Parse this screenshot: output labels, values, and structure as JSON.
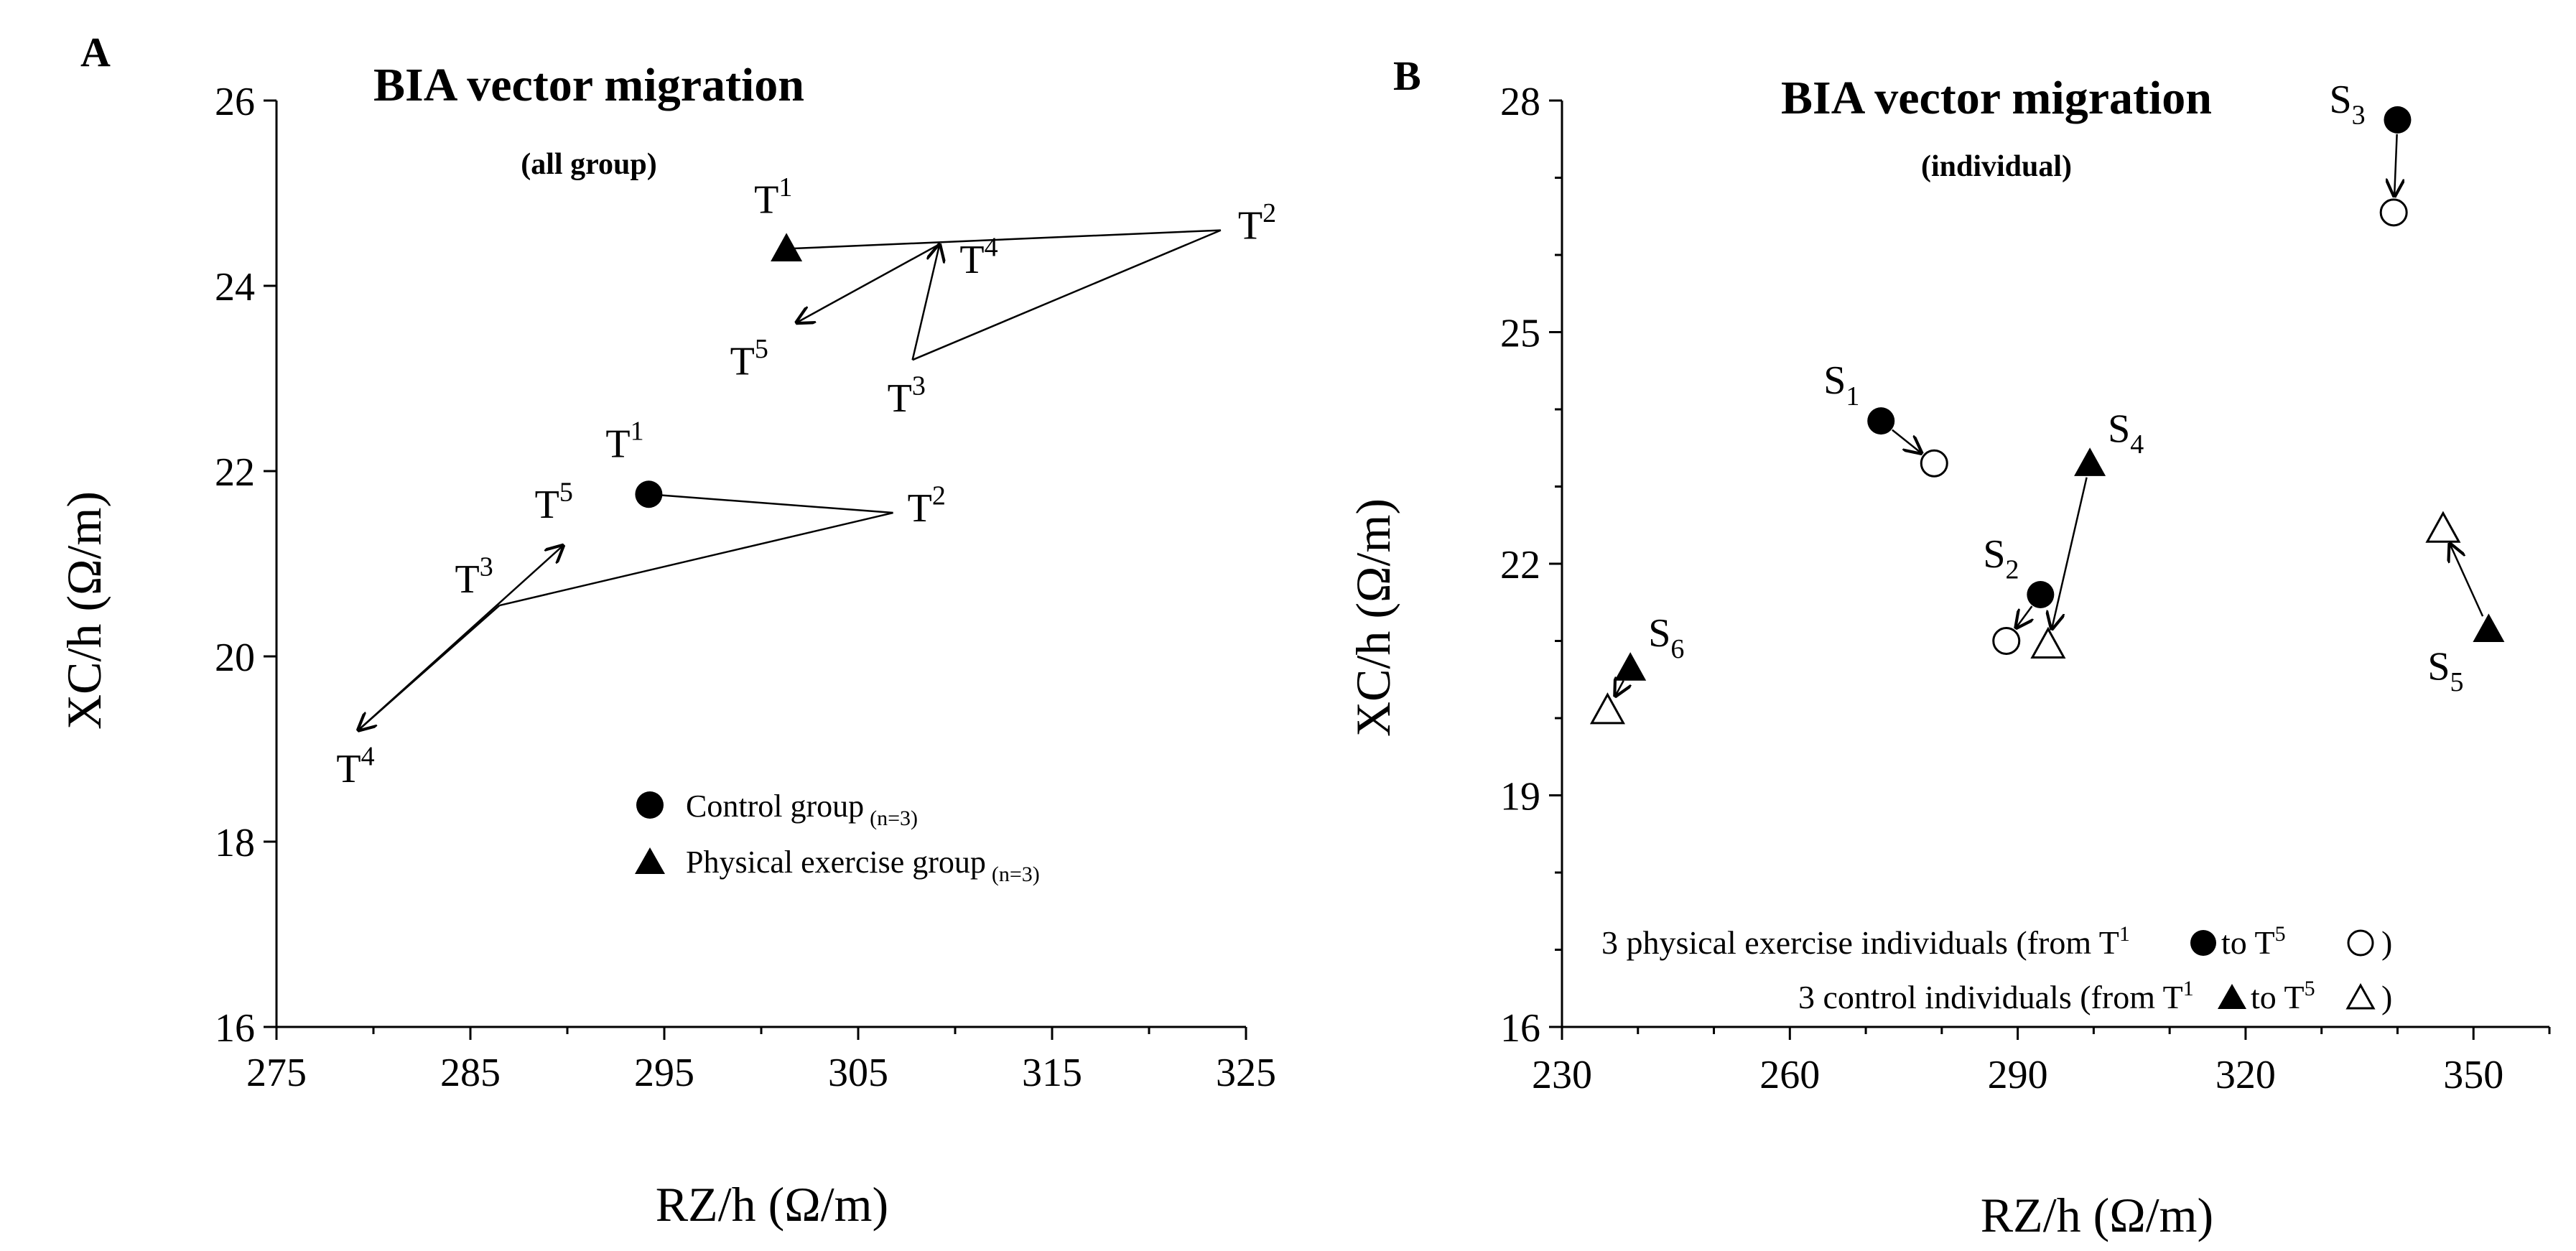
{
  "chart_data": [
    {
      "panel_label": "A",
      "type": "line",
      "title": "BIA vector migration",
      "subtitle": "(all group)",
      "xlabel": "RZ/h (Ω/m)",
      "ylabel": "XC/h (Ω/m)",
      "xlim": [
        275,
        325
      ],
      "ylim": [
        16,
        26
      ],
      "xticks": [
        "275",
        "285",
        "295",
        "305",
        "315",
        "325"
      ],
      "yticks": [
        "16",
        "18",
        "20",
        "22",
        "24",
        "26"
      ],
      "legend": [
        {
          "label": "Control group",
          "sub": "(n=3)",
          "marker": "circle"
        },
        {
          "label": "Physical exercise group",
          "sub": "(n=3)",
          "marker": "triangle"
        }
      ],
      "series": [
        {
          "name": "Control group",
          "marker": "circle",
          "points": [
            {
              "label": "T",
              "sup": "1",
              "x": 294.2,
              "y": 21.75
            },
            {
              "label": "T",
              "sup": "2",
              "x": 306.8,
              "y": 21.55
            },
            {
              "label": "T",
              "sup": "3",
              "x": 286.5,
              "y": 20.55
            },
            {
              "label": "T",
              "sup": "4",
              "x": 279.2,
              "y": 19.2
            },
            {
              "label": "T",
              "sup": "5",
              "x": 289.8,
              "y": 21.2
            }
          ]
        },
        {
          "name": "Physical exercise group",
          "marker": "triangle",
          "points": [
            {
              "label": "T",
              "sup": "1",
              "x": 301.3,
              "y": 24.4
            },
            {
              "label": "T",
              "sup": "2",
              "x": 323.7,
              "y": 24.6
            },
            {
              "label": "T",
              "sup": "3",
              "x": 307.8,
              "y": 23.2
            },
            {
              "label": "T",
              "sup": "4",
              "x": 309.2,
              "y": 24.45
            },
            {
              "label": "T",
              "sup": "5",
              "x": 301.8,
              "y": 23.6
            }
          ]
        }
      ]
    },
    {
      "panel_label": "B",
      "type": "scatter",
      "title": "BIA vector migration",
      "subtitle": "(individual)",
      "xlabel": "RZ/h (Ω/m)",
      "ylabel": "XC/h (Ω/m)",
      "xlim": [
        230,
        360
      ],
      "ylim": [
        16,
        28
      ],
      "xticks": [
        "230",
        "260",
        "290",
        "320",
        "350"
      ],
      "yticks": [
        "16",
        "19",
        "22",
        "25",
        "28"
      ],
      "legend": [
        {
          "text": "3 physical exercise individuals (from T",
          "sup1": "1",
          "mid": " to T",
          "sup2": "5",
          "start": "circle-filled",
          "end": "circle-open"
        },
        {
          "text": "3 control individuals (from T",
          "sup1": "1",
          "mid": " to T",
          "sup2": "5",
          "start": "triangle-filled",
          "end": "triangle-open"
        }
      ],
      "individuals": [
        {
          "label": "S",
          "sub": "1",
          "group": "exercise",
          "start": {
            "x": 272,
            "y": 23.85
          },
          "end": {
            "x": 279,
            "y": 23.3
          }
        },
        {
          "label": "S",
          "sub": "2",
          "group": "exercise",
          "start": {
            "x": 293,
            "y": 21.6
          },
          "end": {
            "x": 288.5,
            "y": 21.0
          }
        },
        {
          "label": "S",
          "sub": "3",
          "group": "exercise",
          "start": {
            "x": 340,
            "y": 27.75
          },
          "end": {
            "x": 339.5,
            "y": 26.55
          }
        },
        {
          "label": "S",
          "sub": "4",
          "group": "control",
          "start": {
            "x": 299.5,
            "y": 23.3
          },
          "end": {
            "x": 294,
            "y": 20.95
          }
        },
        {
          "label": "S",
          "sub": "5",
          "group": "control",
          "start": {
            "x": 352,
            "y": 21.15
          },
          "end": {
            "x": 346,
            "y": 22.45
          }
        },
        {
          "label": "S",
          "sub": "6",
          "group": "control",
          "start": {
            "x": 239,
            "y": 20.65
          },
          "end": {
            "x": 236,
            "y": 20.1
          }
        }
      ]
    }
  ]
}
